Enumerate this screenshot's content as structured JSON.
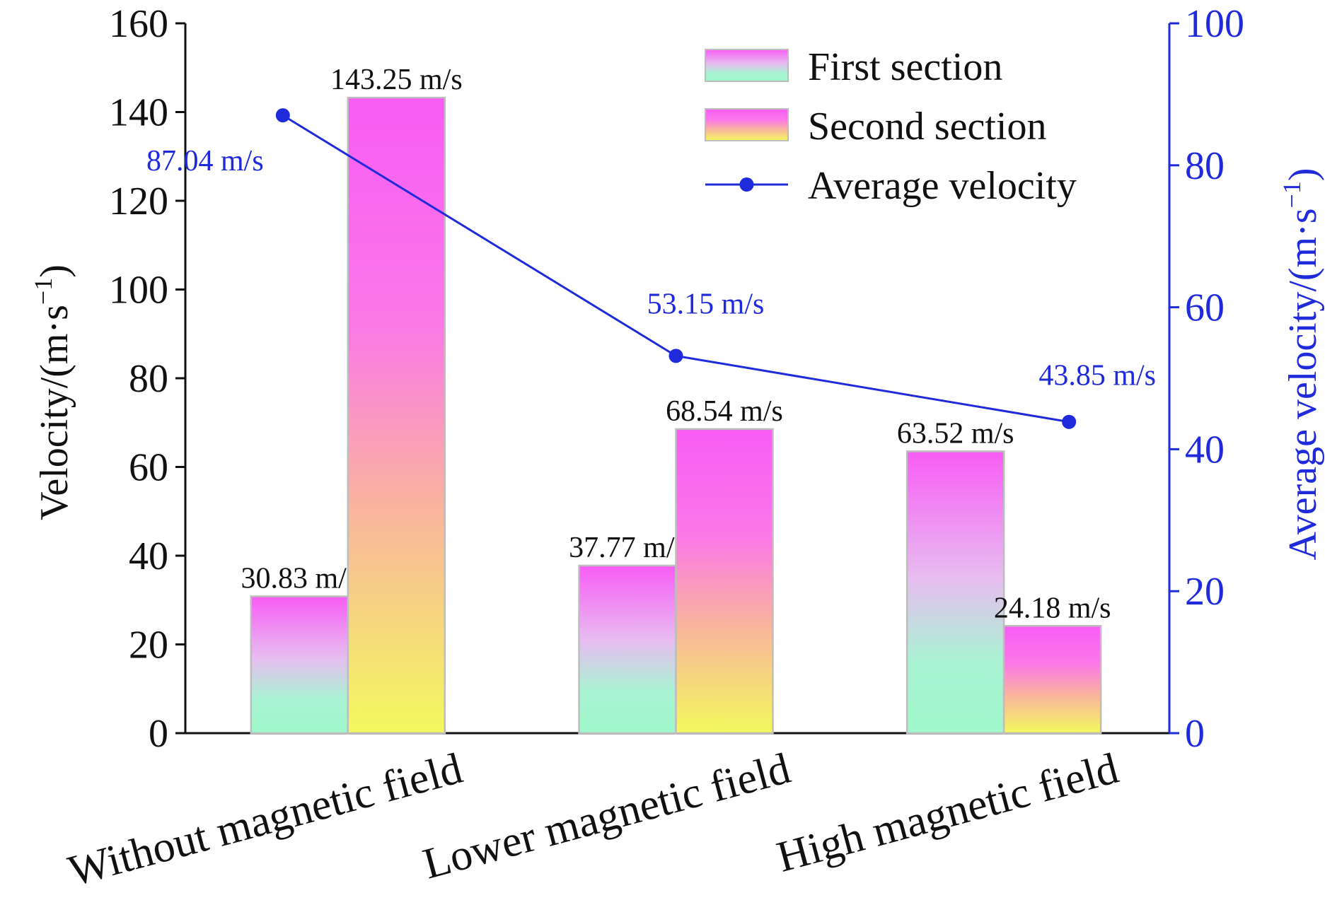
{
  "chart_data": {
    "type": "bar",
    "categories": [
      "Without magnetic field",
      "Lower magnetic field",
      "High magnetic field"
    ],
    "series": [
      {
        "name": "First section",
        "kind": "bar",
        "axis": "left",
        "values": [
          30.83,
          37.77,
          63.52
        ],
        "labels": [
          "30.83 m/s",
          "37.77 m/s",
          "63.52 m/s"
        ]
      },
      {
        "name": "Second section",
        "kind": "bar",
        "axis": "left",
        "values": [
          143.25,
          68.54,
          24.18
        ],
        "labels": [
          "143.25 m/s",
          "68.54 m/s",
          "24.18 m/s"
        ]
      },
      {
        "name": "Average velocity",
        "kind": "line",
        "axis": "right",
        "values": [
          87.04,
          53.15,
          43.85
        ],
        "labels": [
          "87.04 m/s",
          "53.15 m/s",
          "43.85 m/s"
        ]
      }
    ],
    "ylabel": "Velocity/(m·s",
    "y2label": "Average velocity/(m·s",
    "unit_superscript": "−1",
    "unit_close": ")",
    "ylim": [
      0,
      160
    ],
    "y2lim": [
      0,
      100
    ],
    "yticks": [
      0,
      20,
      40,
      60,
      80,
      100,
      120,
      140,
      160
    ],
    "y2ticks": [
      0,
      20,
      40,
      60,
      80,
      100
    ],
    "legend_position": "top-right",
    "grid": false,
    "colors": {
      "first_top": "#f85cf5",
      "first_mid": "#e7bdf0",
      "first_bottom": "#9ff7cb",
      "second_top": "#f85cf5",
      "second_mid": "#f7b0a0",
      "second_bottom": "#f3f95e",
      "line": "#1f2bdb",
      "bar_edge": "#bdbdbd"
    }
  }
}
